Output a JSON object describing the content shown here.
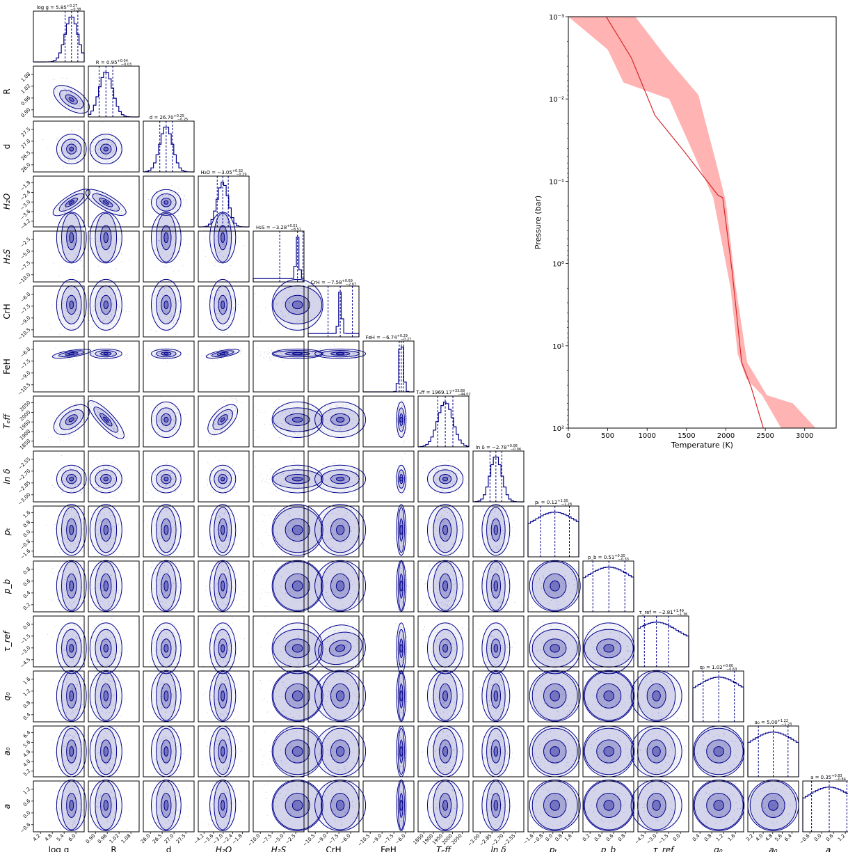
{
  "chart_data": [
    {
      "type": "corner",
      "parameters": [
        {
          "key": "logg",
          "label": "log g",
          "ticks": [
            "4.2",
            "4.8",
            "5.4",
            "6.0"
          ],
          "range": [
            3.9,
            6.5
          ],
          "median": 5.85,
          "plus": "0.27",
          "minus": "0.38",
          "title_lhs": "log g = 5.85"
        },
        {
          "key": "R",
          "label": "R",
          "ticks": [
            "0.90",
            "0.96",
            "1.02",
            "1.08"
          ],
          "range": [
            0.86,
            1.12
          ],
          "median": 0.95,
          "plus": "0.04",
          "minus": "0.03",
          "title_lhs": "R = 0.95"
        },
        {
          "key": "d",
          "label": "d",
          "ticks": [
            "26.0",
            "26.5",
            "27.0",
            "27.5"
          ],
          "range": [
            25.8,
            27.8
          ],
          "median": 26.7,
          "plus": "0.25",
          "minus": "0.25",
          "title_lhs": "d = 26.70"
        },
        {
          "key": "H2O",
          "label": "H₂O",
          "ticks": [
            "−4.2",
            "−3.6",
            "−3.0",
            "−2.4",
            "−1.8"
          ],
          "range": [
            -4.4,
            -1.6
          ],
          "median": -3.05,
          "plus": "0.32",
          "minus": "0.29",
          "title_lhs": "H₂O = −3.05"
        },
        {
          "key": "H2S",
          "label": "H₂S",
          "ticks": [
            "−10.0",
            "−7.5",
            "−5.0",
            "−2.5"
          ],
          "range": [
            -12,
            -2
          ],
          "median": -3.28,
          "plus": "0.51",
          "minus": "8.51",
          "title_lhs": "H₂S = −3.28"
        },
        {
          "key": "CrH",
          "label": "CrH",
          "ticks": [
            "−10.5",
            "−9.0",
            "−7.5",
            "−6.0"
          ],
          "range": [
            -12,
            -5
          ],
          "median": -7.58,
          "plus": "0.69",
          "minus": "2.67",
          "title_lhs": "CrH = −7.58"
        },
        {
          "key": "FeH",
          "label": "FeH",
          "ticks": [
            "−10.5",
            "−9.0",
            "−7.5",
            "−6.0"
          ],
          "range": [
            -12,
            -5
          ],
          "median": -6.74,
          "plus": "0.29",
          "minus": "0.27",
          "title_lhs": "FeH = −6.74"
        },
        {
          "key": "Teff",
          "label": "Tₑff",
          "ticks": [
            "1850",
            "1900",
            "1950",
            "2000",
            "2050"
          ],
          "range": [
            1830,
            2090
          ],
          "median": 1969.17,
          "plus": "33.88",
          "minus": "44.02",
          "title_lhs": "Tₑff = 1969.17"
        },
        {
          "key": "lndelta",
          "label": "ln δ",
          "ticks": [
            "−3.00",
            "−2.85",
            "−2.70",
            "−2.55"
          ],
          "range": [
            -3.05,
            -2.45
          ],
          "median": -2.78,
          "plus": "0.08",
          "minus": "0.06",
          "title_lhs": "ln δ = −2.78"
        },
        {
          "key": "pt",
          "label": "pₜ",
          "ticks": [
            "−1.6",
            "−0.8",
            "0.0",
            "0.8",
            "1.6"
          ],
          "range": [
            -2,
            2
          ],
          "median": 0.12,
          "plus": "1.00",
          "minus": "1.28",
          "title_lhs": "pₜ = 0.12"
        },
        {
          "key": "pb",
          "label": "p_b",
          "ticks": [
            "0.2",
            "0.4",
            "0.6",
            "0.8"
          ],
          "range": [
            0,
            1
          ],
          "median": 0.51,
          "plus": "0.30",
          "minus": "0.33",
          "title_lhs": "p_b = 0.51"
        },
        {
          "key": "tau",
          "label": "τ_ref",
          "ticks": [
            "−4.5",
            "−3.0",
            "−1.5",
            "0.0"
          ],
          "range": [
            -5,
            1
          ],
          "median": -2.81,
          "plus": "1.49",
          "minus": "1.36",
          "title_lhs": "τ_ref = −2.81"
        },
        {
          "key": "q0",
          "label": "q₀",
          "ticks": [
            "0.4",
            "0.8",
            "1.2",
            "1.6"
          ],
          "range": [
            0,
            2
          ],
          "median": 1.02,
          "plus": "0.60",
          "minus": "0.63",
          "title_lhs": "q₀ = 1.02"
        },
        {
          "key": "a0",
          "label": "a₀",
          "ticks": [
            "3.2",
            "4.0",
            "4.8",
            "5.6",
            "6.4"
          ],
          "range": [
            2.9,
            7.1
          ],
          "median": 5.0,
          "plus": "1.22",
          "minus": "1.23",
          "title_lhs": "a₀ = 5.00"
        },
        {
          "key": "a",
          "label": "a",
          "ticks": [
            "−0.6",
            "0.0",
            "0.6",
            "1.2"
          ],
          "range": [
            -0.9,
            1.5
          ],
          "median": 0.35,
          "plus": "0.83",
          "minus": "0.84",
          "title_lhs": "a = 0.35"
        }
      ],
      "color": "#00008b"
    },
    {
      "type": "line",
      "xlabel": "Temperature (K)",
      "ylabel": "Pressure (bar)",
      "x_ticks": [
        "0",
        "500",
        "1000",
        "1500",
        "2000",
        "2500",
        "3000"
      ],
      "y_ticks": [
        "10⁻³",
        "10⁻²",
        "10⁻¹",
        "10⁰",
        "10¹",
        "10²"
      ],
      "xlim": [
        0,
        3400
      ],
      "ylim_log": [
        -3,
        2
      ],
      "y_scale": "log",
      "y_inverted": false,
      "median_line": [
        [
          480,
          -3
        ],
        [
          800,
          -2.5
        ],
        [
          1100,
          -1.8
        ],
        [
          1480,
          -1.35
        ],
        [
          1900,
          -0.83
        ],
        [
          1960,
          -0.8
        ],
        [
          2080,
          0.1
        ],
        [
          2200,
          1.2
        ],
        [
          2320,
          1.5
        ],
        [
          2600,
          2.4
        ],
        [
          2900,
          2.0
        ]
      ],
      "band_low": [
        [
          0,
          -3
        ],
        [
          500,
          -2.6
        ],
        [
          700,
          -2.2
        ],
        [
          1280,
          -2.0
        ],
        [
          1840,
          -0.8
        ],
        [
          2060,
          0.3
        ],
        [
          2150,
          1.1
        ],
        [
          2260,
          1.4
        ],
        [
          2460,
          1.6
        ],
        [
          2700,
          2.0
        ]
      ],
      "band_high": [
        [
          850,
          -3
        ],
        [
          1250,
          -2.5
        ],
        [
          1650,
          -2.05
        ],
        [
          1870,
          -1.25
        ],
        [
          2000,
          -0.75
        ],
        [
          2120,
          0.25
        ],
        [
          2270,
          1.2
        ],
        [
          2520,
          1.6
        ],
        [
          2850,
          1.7
        ],
        [
          3140,
          2.0
        ]
      ],
      "line_color": "#d62728",
      "band_color": "#ffb3b3"
    }
  ]
}
